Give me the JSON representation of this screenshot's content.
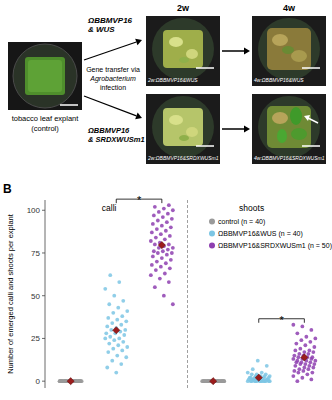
{
  "panel_a": {
    "control_label": [
      "tobacco leaf explant",
      "(control)"
    ],
    "construct_1": [
      "ΩBBMVP16",
      "& WUS"
    ],
    "construct_2": [
      "ΩBBMVP16",
      "& SRDXWUSm1"
    ],
    "method": [
      "Gene transfer via",
      "Agrobacterium",
      "infection"
    ],
    "time_points": [
      "2w",
      "4w"
    ],
    "captions": [
      [
        "2w:ΩBBMVP16&WUS",
        "4w:ΩBBMVP16&WUS"
      ],
      [
        "2w:ΩBBMVP16&SRDXWUSm1",
        "4w:ΩBBMVP16&SRDXWUSm1"
      ]
    ]
  },
  "chart_data": {
    "type": "scatter",
    "panel_label": "B",
    "y_label": "Number of emerged calli and shoots per explant",
    "categories": [
      "calli",
      "shoots"
    ],
    "series": [
      {
        "name": "control (n = 40)",
        "color": "#9a9a9a",
        "marker": "circle",
        "values": [
          [
            0,
            0,
            0,
            0,
            0,
            0,
            0,
            0,
            0,
            0,
            0,
            0,
            0,
            0,
            0,
            0,
            0,
            0,
            0,
            0,
            0,
            0,
            0,
            0,
            0,
            0,
            0,
            0,
            0,
            0,
            0,
            0,
            0,
            0,
            0,
            0,
            0,
            0,
            0,
            0
          ],
          [
            0,
            0,
            0,
            0,
            0,
            0,
            0,
            0,
            0,
            0,
            0,
            0,
            0,
            0,
            0,
            0,
            0,
            0,
            0,
            0,
            0,
            0,
            0,
            0,
            0,
            0,
            0,
            0,
            0,
            0,
            0,
            0,
            0,
            0,
            0,
            0,
            0,
            0,
            0,
            0
          ]
        ],
        "means": [
          0,
          0
        ]
      },
      {
        "name": "ΩBBMVP16&WUS (n = 40)",
        "color": "#7cc6e4",
        "marker": "circle",
        "values": [
          [
            5,
            8,
            10,
            12,
            14,
            15,
            17,
            18,
            19,
            20,
            21,
            22,
            23,
            24,
            25,
            25,
            26,
            27,
            28,
            28,
            29,
            30,
            30,
            31,
            32,
            33,
            34,
            35,
            36,
            37,
            38,
            40,
            41,
            43,
            45,
            47,
            50,
            54,
            58,
            62
          ],
          [
            0,
            0,
            0,
            0,
            0,
            0,
            0,
            0,
            0,
            0,
            0,
            0,
            0,
            0,
            1,
            1,
            1,
            1,
            1,
            1,
            1,
            1,
            2,
            2,
            2,
            2,
            2,
            2,
            3,
            3,
            3,
            3,
            4,
            4,
            4,
            5,
            5,
            7,
            9,
            12
          ]
        ],
        "means": [
          29.8,
          2.05
        ]
      },
      {
        "name": "ΩBBMVP16&SRDXWUSm1 (n = 50)",
        "color": "#8e3fb0",
        "marker": "circle",
        "values": [
          [
            45,
            50,
            55,
            58,
            60,
            62,
            63,
            65,
            66,
            67,
            68,
            69,
            70,
            71,
            72,
            73,
            74,
            75,
            75,
            76,
            76,
            77,
            78,
            78,
            79,
            80,
            80,
            81,
            82,
            83,
            84,
            85,
            86,
            87,
            88,
            89,
            90,
            91,
            92,
            93,
            94,
            95,
            96,
            97,
            98,
            99,
            100,
            101,
            102,
            103
          ],
          [
            0,
            1,
            2,
            3,
            4,
            5,
            5,
            6,
            6,
            7,
            7,
            8,
            8,
            9,
            9,
            10,
            10,
            10,
            11,
            11,
            11,
            12,
            12,
            12,
            13,
            13,
            13,
            14,
            14,
            14,
            15,
            15,
            16,
            16,
            17,
            17,
            18,
            18,
            19,
            20,
            21,
            22,
            23,
            24,
            25,
            26,
            28,
            30,
            32,
            33
          ]
        ],
        "means": [
          79.6,
          13.9
        ]
      }
    ],
    "significance": [
      "*",
      "*"
    ],
    "ylim": [
      -4,
      106
    ],
    "yticks": [
      0,
      25,
      50,
      75,
      100
    ],
    "grid": false,
    "legend": "top-right"
  }
}
